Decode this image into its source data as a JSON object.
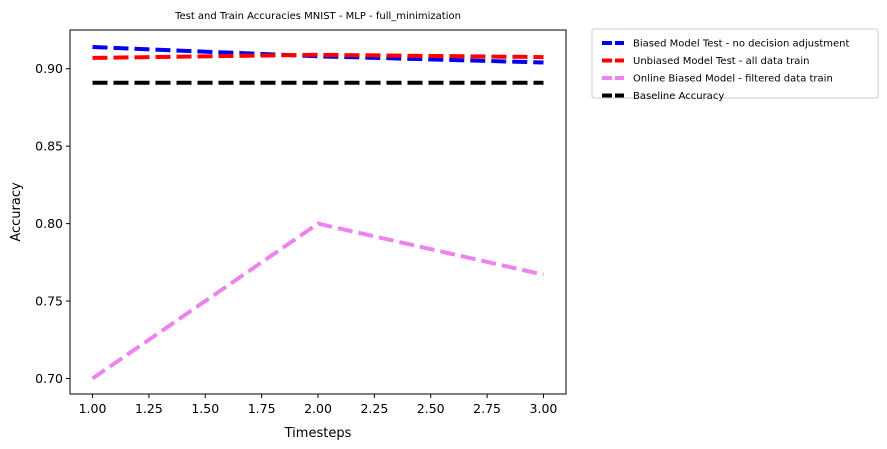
{
  "chart_data": {
    "type": "line",
    "title": "Test and Train Accuracies MNIST - MLP - full_minimization",
    "xlabel": "Timesteps",
    "ylabel": "Accuracy",
    "xlim": [
      0.9,
      3.1
    ],
    "ylim": [
      0.69,
      0.925
    ],
    "xticks": [
      "1.00",
      "1.25",
      "1.50",
      "1.75",
      "2.00",
      "2.25",
      "2.50",
      "2.75",
      "3.00"
    ],
    "yticks": [
      "0.70",
      "0.75",
      "0.80",
      "0.85",
      "0.90"
    ],
    "grid": false,
    "legend_placement": "outside-right-top",
    "x": [
      1,
      2,
      3
    ],
    "series": [
      {
        "name": "Biased Model Test - no decision adjustment",
        "values": [
          0.914,
          0.908,
          0.904
        ],
        "color": "#0000ee"
      },
      {
        "name": "Unbiased Model Test - all data train",
        "values": [
          0.907,
          0.909,
          0.9075
        ],
        "color": "#ff0000"
      },
      {
        "name": "Online Biased Model - filtered data train",
        "values": [
          0.7,
          0.8,
          0.767
        ],
        "color": "#ee82ee"
      },
      {
        "name": "Baseline Accuracy",
        "values": [
          0.891,
          0.891,
          0.891
        ],
        "color": "#000000"
      }
    ]
  }
}
